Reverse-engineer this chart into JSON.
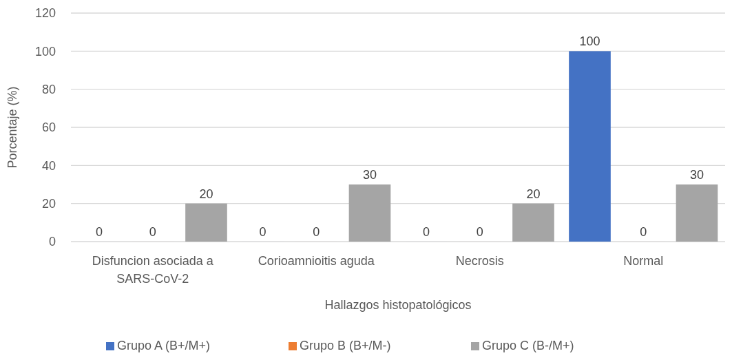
{
  "chart_data": {
    "type": "bar",
    "xlabel": "Hallazgos histopatológicos",
    "ylabel": "Porcentaje (%)",
    "categories": [
      "Disfuncion asociada a SARS-CoV-2",
      "Corioamnioitis aguda",
      "Necrosis",
      "Normal"
    ],
    "series": [
      {
        "name": "Grupo A (B+/M+)",
        "color": "#4472c4",
        "values": [
          0,
          0,
          0,
          100
        ],
        "value_labels": [
          "0",
          "0",
          "0",
          "100"
        ]
      },
      {
        "name": "Grupo B (B+/M-)",
        "color": "#ed7d31",
        "values": [
          0,
          0,
          0,
          0
        ],
        "value_labels": [
          "0",
          "0",
          "0",
          "0"
        ]
      },
      {
        "name": "Grupo C (B-/M+)",
        "color": "#a5a5a5",
        "values": [
          20,
          30,
          20,
          30
        ],
        "value_labels": [
          "20",
          "30",
          "20",
          "30"
        ]
      }
    ],
    "ylim": [
      0,
      120
    ],
    "yticks": [
      0,
      20,
      40,
      60,
      80,
      100,
      120
    ],
    "grid": "y",
    "legend": "bottom"
  }
}
